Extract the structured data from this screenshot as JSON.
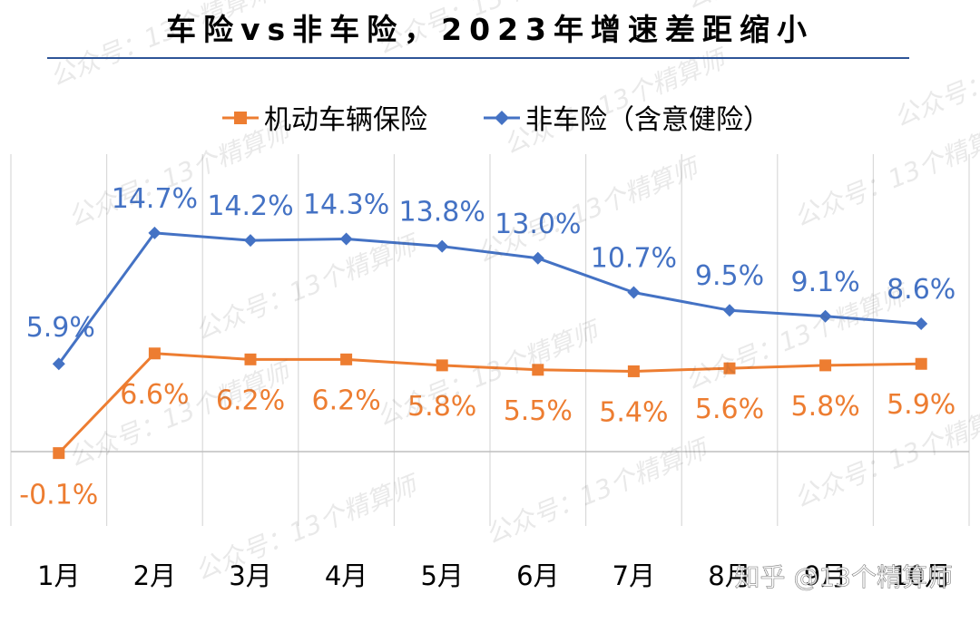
{
  "chart_data": {
    "type": "line",
    "title": "车险vs非车险，2023年增速差距缩小",
    "categories": [
      "1月",
      "2月",
      "3月",
      "4月",
      "5月",
      "6月",
      "7月",
      "8月",
      "9月",
      "10月"
    ],
    "series": [
      {
        "name": "机动车辆保险",
        "color": "#ED7D31",
        "marker": "square",
        "values": [
          -0.1,
          6.6,
          6.2,
          6.2,
          5.8,
          5.5,
          5.4,
          5.6,
          5.8,
          5.9
        ],
        "labels": [
          "-0.1%",
          "6.6%",
          "6.2%",
          "6.2%",
          "5.8%",
          "5.5%",
          "5.4%",
          "5.6%",
          "5.8%",
          "5.9%"
        ]
      },
      {
        "name": "非车险（含意健险）",
        "color": "#4472C4",
        "marker": "diamond",
        "values": [
          5.9,
          14.7,
          14.2,
          14.3,
          13.8,
          13.0,
          10.7,
          9.5,
          9.1,
          8.6
        ],
        "labels": [
          "5.9%",
          "14.7%",
          "14.2%",
          "14.3%",
          "13.8%",
          "13.0%",
          "10.7%",
          "9.5%",
          "9.1%",
          "8.6%"
        ]
      }
    ],
    "ylim": [
      -5,
      20
    ],
    "legend": "top-center",
    "grid": "vertical"
  },
  "watermark_text": "公众号：13个精算师",
  "attribution": "知乎 @13个精算师",
  "colors": {
    "title_rule": "#2E5597",
    "grid": "#D9D9D9",
    "axis": "#BFBFBF",
    "text": "#000000"
  }
}
